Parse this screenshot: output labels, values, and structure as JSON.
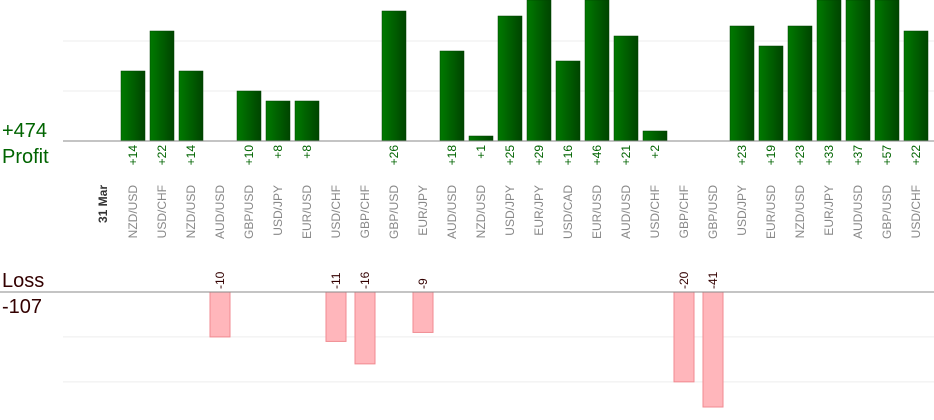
{
  "chart_data": {
    "type": "bar",
    "date_label": "31 Mar",
    "profit_title": "Profit",
    "profit_total": "+474",
    "loss_title": "Loss",
    "loss_total": "-107",
    "categories": [
      "NZD/USD",
      "USD/CHF",
      "NZD/USD",
      "AUD/USD",
      "GBP/USD",
      "USD/JPY",
      "EUR/USD",
      "USD/CHF",
      "GBP/CHF",
      "GBP/USD",
      "EUR/JPY",
      "AUD/USD",
      "NZD/USD",
      "USD/JPY",
      "EUR/JPY",
      "USD/CAD",
      "EUR/USD",
      "AUD/USD",
      "USD/CHF",
      "GBP/CHF",
      "GBP/USD",
      "USD/JPY",
      "EUR/USD",
      "NZD/USD",
      "EUR/JPY",
      "AUD/USD",
      "GBP/USD",
      "USD/CHF"
    ],
    "values": [
      14,
      22,
      14,
      -10,
      10,
      8,
      8,
      -11,
      -16,
      26,
      -9,
      18,
      1,
      25,
      29,
      16,
      46,
      21,
      2,
      -20,
      -41,
      23,
      19,
      23,
      33,
      37,
      57,
      22
    ],
    "value_labels": [
      "+14",
      "+22",
      "+14",
      "-10",
      "+10",
      "+8",
      "+8",
      "-11",
      "-16",
      "+26",
      "-9",
      "+18",
      "+1",
      "+25",
      "+29",
      "+16",
      "+46",
      "+21",
      "+2",
      "-20",
      "-41",
      "+23",
      "+19",
      "+23",
      "+33",
      "+37",
      "+57",
      "+22"
    ],
    "profit_color": "#006400",
    "loss_color": "#ffb6bb",
    "profit_ylim": [
      0,
      28.2
    ],
    "profit_yticks": [
      10,
      20
    ],
    "loss_ylim": [
      -25.6,
      0
    ],
    "loss_yticks": [
      -10,
      -20
    ]
  }
}
